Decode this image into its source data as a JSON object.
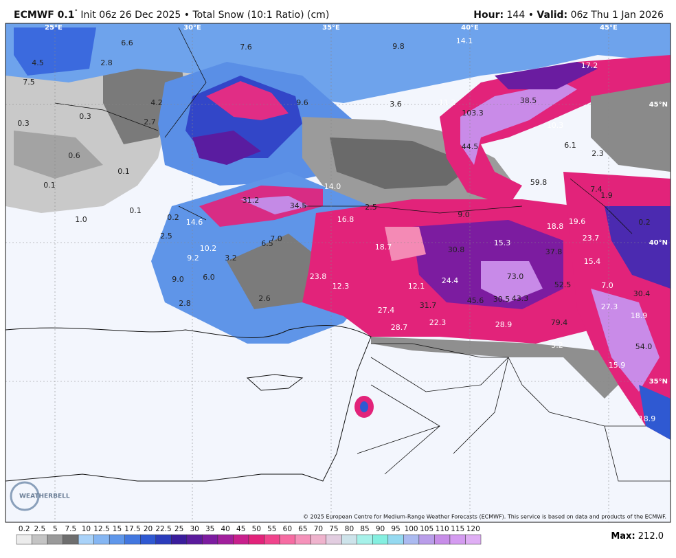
{
  "header": {
    "model": "ECMWF 0.1",
    "degree": "°",
    "subtitle": " Init 06z 26 Dec 2025 • Total Snow (10:1 Ratio) (cm)",
    "hour_label": "Hour:",
    "hour_value": " 144 • ",
    "valid_label": "Valid:",
    "valid_value": " 06z Thu 1 Jan 2026"
  },
  "grid_labels": [
    "25°E",
    "30°E",
    "35°E",
    "40°E",
    "45°E",
    "45°N",
    "40°N",
    "35°N"
  ],
  "map_values": [
    "14.1",
    "9.8",
    "17.2",
    "6.6",
    "7.6",
    "4.5",
    "2.8",
    "7.5",
    "4.2",
    "9.6",
    "3.6",
    "11.2",
    "38.5",
    "103.3",
    "0.3",
    "0.3",
    "2.7",
    "10.3",
    "44.5",
    "6.1",
    "2.3",
    "0.6",
    "0.1",
    "59.8",
    "0.1",
    "14.0",
    "7.4",
    "1.9",
    "31.2",
    "34.5",
    "2.5",
    "0.1",
    "1.0",
    "0.2",
    "14.6",
    "16.8",
    "9.0",
    "18.8",
    "19.6",
    "0.2",
    "2.5",
    "7.0",
    "23.7",
    "10.2",
    "6.5",
    "18.7",
    "15.3",
    "30.8",
    "37.8",
    "9.2",
    "3.2",
    "15.4",
    "9.0",
    "6.0",
    "23.8",
    "73.0",
    "52.5",
    "12.3",
    "12.1",
    "24.4",
    "7.0",
    "30.4",
    "2.6",
    "2.8",
    "31.7",
    "45.6",
    "30.5",
    "43.3",
    "27.3",
    "27.4",
    "18.9",
    "79.4",
    "28.7",
    "22.3",
    "28.9",
    "5.2",
    "54.0",
    "15.9",
    "18.9"
  ],
  "copyright": "© 2025 European Centre for Medium-Range Weather Forecasts (ECMWF). This service is based on data and products of the ECMWF.",
  "logo": "WEATHERBELL",
  "legend": {
    "ticks": [
      "0.2",
      "2.5",
      "5",
      "7.5",
      "10",
      "12.5",
      "15",
      "17.5",
      "20",
      "22.5",
      "25",
      "30",
      "35",
      "40",
      "45",
      "50",
      "55",
      "60",
      "65",
      "70",
      "75",
      "80",
      "85",
      "90",
      "95",
      "100",
      "105",
      "110",
      "115",
      "120"
    ],
    "colors": [
      "#ececec",
      "#c4c4c4",
      "#9a9a9a",
      "#6e6e6e",
      "#a9d2f8",
      "#85b6f2",
      "#5f97ea",
      "#4277df",
      "#2f59d2",
      "#2b3cbb",
      "#3a1d9c",
      "#5a1b9c",
      "#7c1ca0",
      "#a11f9c",
      "#c8208c",
      "#e2237a",
      "#f0448c",
      "#f66ca2",
      "#f592ba",
      "#efb3cd",
      "#e2cde0",
      "#cde3ea",
      "#a6f1e9",
      "#84efe0",
      "#94d9f0",
      "#abbaf0",
      "#b99de9",
      "#c78de8",
      "#d49bf0",
      "#dfaef4"
    ]
  },
  "max_label": "Max:",
  "max_value": " 212.0"
}
